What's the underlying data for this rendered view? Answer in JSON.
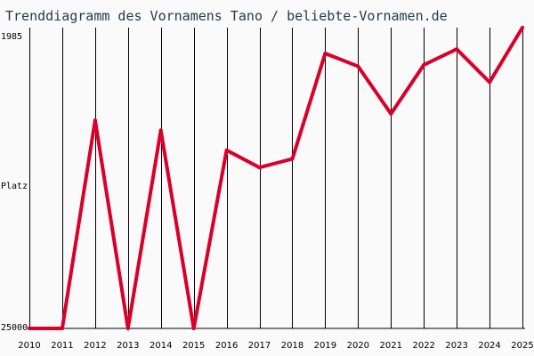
{
  "chart_data": {
    "type": "line",
    "title": "Trenddiagramm des Vornamens Tano / beliebte-Vornamen.de",
    "ylabel": "Platz",
    "y_top_label": "1985",
    "y_bottom_label": "25000",
    "y_reversed": true,
    "x": [
      "2010",
      "2011",
      "2012",
      "2013",
      "2014",
      "2015",
      "2016",
      "2017",
      "2018",
      "2019",
      "2020",
      "2021",
      "2022",
      "2023",
      "2024",
      "2025"
    ],
    "series": [
      {
        "color": "#d9002a",
        "values": [
          25000,
          25000,
          9075,
          25000,
          9840,
          25000,
          11370,
          12690,
          12030,
          3960,
          4950,
          8580,
          4840,
          3630,
          6160,
          1985
        ]
      }
    ],
    "grid": "vertical"
  }
}
